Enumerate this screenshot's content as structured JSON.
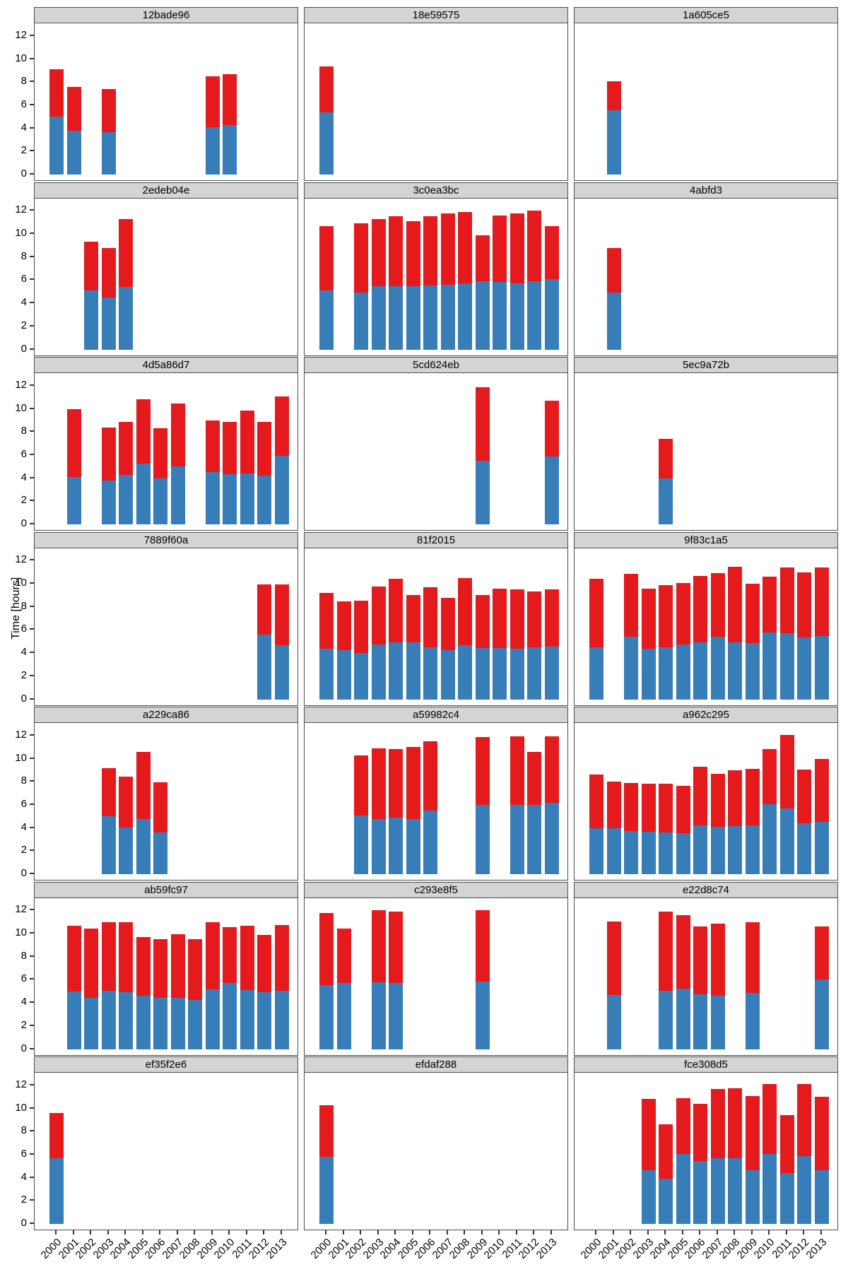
{
  "figure": {
    "y_axis_title": "Time [hours]"
  },
  "colors": {
    "blue": "#377EB8",
    "red": "#E41A1C",
    "strip_bg": "#D4D4D4",
    "panel_border": "#4D4D4D",
    "background": "#FFFFFF"
  },
  "chart_data": {
    "type": "bar",
    "stacked": true,
    "faceted": true,
    "title": "",
    "xlabel": "",
    "ylabel": "Time [hours]",
    "ylim": [
      0,
      12.6
    ],
    "grid": false,
    "legend_position": "none",
    "y_ticks": [
      0,
      2,
      4,
      6,
      8,
      10,
      12
    ],
    "x_years": [
      2000,
      2001,
      2002,
      2003,
      2004,
      2005,
      2006,
      2007,
      2008,
      2009,
      2010,
      2011,
      2012,
      2013
    ],
    "series_meaning": {
      "blue": "bottom segment value",
      "total": "stacked bar total; red segment = total - blue"
    },
    "facets": [
      {
        "id": "12bade96",
        "bars": [
          {
            "year": 2000,
            "blue": 5.0,
            "total": 9.1
          },
          {
            "year": 2001,
            "blue": 3.8,
            "total": 7.6
          },
          {
            "year": 2003,
            "blue": 3.7,
            "total": 7.4
          },
          {
            "year": 2009,
            "blue": 4.1,
            "total": 8.5
          },
          {
            "year": 2010,
            "blue": 4.3,
            "total": 8.7
          }
        ]
      },
      {
        "id": "18e59575",
        "bars": [
          {
            "year": 2000,
            "blue": 5.4,
            "total": 9.35
          }
        ]
      },
      {
        "id": "1a605ce5",
        "bars": [
          {
            "year": 2001,
            "blue": 5.55,
            "total": 8.05
          }
        ]
      },
      {
        "id": "2edeb04e",
        "bars": [
          {
            "year": 2002,
            "blue": 5.1,
            "total": 9.3
          },
          {
            "year": 2003,
            "blue": 4.5,
            "total": 8.75
          },
          {
            "year": 2004,
            "blue": 5.4,
            "total": 11.3
          }
        ]
      },
      {
        "id": "3c0ea3bc",
        "bars": [
          {
            "year": 2000,
            "blue": 5.1,
            "total": 10.65
          },
          {
            "year": 2002,
            "blue": 4.9,
            "total": 10.9
          },
          {
            "year": 2003,
            "blue": 5.45,
            "total": 11.3
          },
          {
            "year": 2004,
            "blue": 5.5,
            "total": 11.5
          },
          {
            "year": 2005,
            "blue": 5.5,
            "total": 11.1
          },
          {
            "year": 2006,
            "blue": 5.55,
            "total": 11.5
          },
          {
            "year": 2007,
            "blue": 5.6,
            "total": 11.75
          },
          {
            "year": 2008,
            "blue": 5.75,
            "total": 11.9
          },
          {
            "year": 2009,
            "blue": 5.9,
            "total": 9.9
          },
          {
            "year": 2010,
            "blue": 5.85,
            "total": 11.6
          },
          {
            "year": 2011,
            "blue": 5.75,
            "total": 11.8
          },
          {
            "year": 2012,
            "blue": 5.9,
            "total": 12.0
          },
          {
            "year": 2013,
            "blue": 6.1,
            "total": 10.7
          }
        ]
      },
      {
        "id": "4abfd3",
        "bars": [
          {
            "year": 2001,
            "blue": 4.9,
            "total": 8.8
          }
        ]
      },
      {
        "id": "4d5a86d7",
        "bars": [
          {
            "year": 2001,
            "blue": 4.1,
            "total": 10.0
          },
          {
            "year": 2003,
            "blue": 3.8,
            "total": 8.4
          },
          {
            "year": 2004,
            "blue": 4.3,
            "total": 8.85
          },
          {
            "year": 2005,
            "blue": 5.25,
            "total": 10.8
          },
          {
            "year": 2006,
            "blue": 3.95,
            "total": 8.3
          },
          {
            "year": 2007,
            "blue": 5.0,
            "total": 10.45
          },
          {
            "year": 2009,
            "blue": 4.5,
            "total": 9.0
          },
          {
            "year": 2010,
            "blue": 4.35,
            "total": 8.9
          },
          {
            "year": 2011,
            "blue": 4.4,
            "total": 9.85
          },
          {
            "year": 2012,
            "blue": 4.25,
            "total": 8.85
          },
          {
            "year": 2013,
            "blue": 5.95,
            "total": 11.05
          }
        ]
      },
      {
        "id": "5cd624eb",
        "bars": [
          {
            "year": 2009,
            "blue": 5.5,
            "total": 11.85
          },
          {
            "year": 2013,
            "blue": 5.9,
            "total": 10.7
          }
        ]
      },
      {
        "id": "5ec9a72b",
        "bars": [
          {
            "year": 2004,
            "blue": 4.0,
            "total": 7.4
          }
        ]
      },
      {
        "id": "7889f60a",
        "bars": [
          {
            "year": 2012,
            "blue": 5.6,
            "total": 9.95
          },
          {
            "year": 2013,
            "blue": 4.7,
            "total": 9.95
          }
        ]
      },
      {
        "id": "81f2015",
        "bars": [
          {
            "year": 2000,
            "blue": 4.35,
            "total": 9.2
          },
          {
            "year": 2001,
            "blue": 4.25,
            "total": 8.5
          },
          {
            "year": 2002,
            "blue": 4.0,
            "total": 8.55
          },
          {
            "year": 2003,
            "blue": 4.75,
            "total": 9.75
          },
          {
            "year": 2004,
            "blue": 4.95,
            "total": 10.4
          },
          {
            "year": 2005,
            "blue": 4.95,
            "total": 9.0
          },
          {
            "year": 2006,
            "blue": 4.5,
            "total": 9.7
          },
          {
            "year": 2007,
            "blue": 4.25,
            "total": 8.8
          },
          {
            "year": 2008,
            "blue": 4.65,
            "total": 10.5
          },
          {
            "year": 2009,
            "blue": 4.45,
            "total": 9.05
          },
          {
            "year": 2010,
            "blue": 4.45,
            "total": 9.6
          },
          {
            "year": 2011,
            "blue": 4.4,
            "total": 9.5
          },
          {
            "year": 2012,
            "blue": 4.5,
            "total": 9.3
          },
          {
            "year": 2013,
            "blue": 4.55,
            "total": 9.5
          }
        ]
      },
      {
        "id": "9f83c1a5",
        "bars": [
          {
            "year": 2000,
            "blue": 4.5,
            "total": 10.4
          },
          {
            "year": 2002,
            "blue": 5.4,
            "total": 10.85
          },
          {
            "year": 2003,
            "blue": 4.4,
            "total": 9.6
          },
          {
            "year": 2004,
            "blue": 4.5,
            "total": 9.85
          },
          {
            "year": 2005,
            "blue": 4.75,
            "total": 10.05
          },
          {
            "year": 2006,
            "blue": 4.9,
            "total": 10.7
          },
          {
            "year": 2007,
            "blue": 5.4,
            "total": 10.9
          },
          {
            "year": 2008,
            "blue": 4.9,
            "total": 11.45
          },
          {
            "year": 2009,
            "blue": 4.85,
            "total": 10.0
          },
          {
            "year": 2010,
            "blue": 5.8,
            "total": 10.6
          },
          {
            "year": 2011,
            "blue": 5.75,
            "total": 11.4
          },
          {
            "year": 2012,
            "blue": 5.35,
            "total": 10.95
          },
          {
            "year": 2013,
            "blue": 5.5,
            "total": 11.4
          }
        ]
      },
      {
        "id": "a229ca86",
        "bars": [
          {
            "year": 2003,
            "blue": 5.0,
            "total": 9.2
          },
          {
            "year": 2004,
            "blue": 4.05,
            "total": 8.45
          },
          {
            "year": 2005,
            "blue": 4.8,
            "total": 10.6
          },
          {
            "year": 2006,
            "blue": 3.6,
            "total": 7.95
          }
        ]
      },
      {
        "id": "a59982c4",
        "bars": [
          {
            "year": 2002,
            "blue": 5.1,
            "total": 10.3
          },
          {
            "year": 2003,
            "blue": 4.8,
            "total": 10.9
          },
          {
            "year": 2004,
            "blue": 4.9,
            "total": 10.8
          },
          {
            "year": 2005,
            "blue": 4.8,
            "total": 11.0
          },
          {
            "year": 2006,
            "blue": 5.5,
            "total": 11.5
          },
          {
            "year": 2009,
            "blue": 6.0,
            "total": 11.85
          },
          {
            "year": 2011,
            "blue": 6.0,
            "total": 11.9
          },
          {
            "year": 2012,
            "blue": 6.0,
            "total": 10.6
          },
          {
            "year": 2013,
            "blue": 6.2,
            "total": 11.9
          }
        ]
      },
      {
        "id": "a962c295",
        "bars": [
          {
            "year": 2000,
            "blue": 4.0,
            "total": 8.6
          },
          {
            "year": 2001,
            "blue": 3.95,
            "total": 8.0
          },
          {
            "year": 2002,
            "blue": 3.75,
            "total": 7.9
          },
          {
            "year": 2003,
            "blue": 3.65,
            "total": 7.8
          },
          {
            "year": 2004,
            "blue": 3.6,
            "total": 7.8
          },
          {
            "year": 2005,
            "blue": 3.55,
            "total": 7.65
          },
          {
            "year": 2006,
            "blue": 4.25,
            "total": 9.3
          },
          {
            "year": 2007,
            "blue": 4.1,
            "total": 8.7
          },
          {
            "year": 2008,
            "blue": 4.15,
            "total": 9.0
          },
          {
            "year": 2009,
            "blue": 4.2,
            "total": 9.1
          },
          {
            "year": 2010,
            "blue": 6.05,
            "total": 10.85
          },
          {
            "year": 2011,
            "blue": 5.7,
            "total": 12.05
          },
          {
            "year": 2012,
            "blue": 4.4,
            "total": 9.05
          },
          {
            "year": 2013,
            "blue": 4.55,
            "total": 9.95
          }
        ]
      },
      {
        "id": "ab59fc97",
        "bars": [
          {
            "year": 2001,
            "blue": 5.0,
            "total": 10.7
          },
          {
            "year": 2002,
            "blue": 4.45,
            "total": 10.4
          },
          {
            "year": 2003,
            "blue": 5.05,
            "total": 11.0
          },
          {
            "year": 2004,
            "blue": 4.9,
            "total": 10.95
          },
          {
            "year": 2005,
            "blue": 4.6,
            "total": 9.7
          },
          {
            "year": 2006,
            "blue": 4.45,
            "total": 9.5
          },
          {
            "year": 2007,
            "blue": 4.45,
            "total": 9.95
          },
          {
            "year": 2008,
            "blue": 4.25,
            "total": 9.5
          },
          {
            "year": 2009,
            "blue": 5.15,
            "total": 11.0
          },
          {
            "year": 2010,
            "blue": 5.7,
            "total": 10.55
          },
          {
            "year": 2011,
            "blue": 5.1,
            "total": 10.65
          },
          {
            "year": 2012,
            "blue": 4.95,
            "total": 9.9
          },
          {
            "year": 2013,
            "blue": 5.05,
            "total": 10.75
          }
        ]
      },
      {
        "id": "c293e8f5",
        "bars": [
          {
            "year": 2000,
            "blue": 5.55,
            "total": 11.8
          },
          {
            "year": 2001,
            "blue": 5.7,
            "total": 10.4
          },
          {
            "year": 2003,
            "blue": 5.8,
            "total": 12.0
          },
          {
            "year": 2004,
            "blue": 5.75,
            "total": 11.9
          },
          {
            "year": 2009,
            "blue": 5.85,
            "total": 12.0
          }
        ]
      },
      {
        "id": "e22d8c74",
        "bars": [
          {
            "year": 2001,
            "blue": 4.65,
            "total": 11.05
          },
          {
            "year": 2004,
            "blue": 5.05,
            "total": 11.9
          },
          {
            "year": 2005,
            "blue": 5.2,
            "total": 11.6
          },
          {
            "year": 2006,
            "blue": 4.75,
            "total": 10.6
          },
          {
            "year": 2007,
            "blue": 4.6,
            "total": 10.85
          },
          {
            "year": 2009,
            "blue": 4.85,
            "total": 11.0
          },
          {
            "year": 2013,
            "blue": 6.05,
            "total": 10.6
          }
        ]
      },
      {
        "id": "ef35f2e6",
        "bars": [
          {
            "year": 2000,
            "blue": 5.7,
            "total": 9.6
          }
        ]
      },
      {
        "id": "efdaf288",
        "bars": [
          {
            "year": 2000,
            "blue": 5.8,
            "total": 10.25
          }
        ]
      },
      {
        "id": "fce308d5",
        "bars": [
          {
            "year": 2003,
            "blue": 4.65,
            "total": 10.8
          },
          {
            "year": 2004,
            "blue": 3.9,
            "total": 8.6
          },
          {
            "year": 2005,
            "blue": 6.05,
            "total": 10.9
          },
          {
            "year": 2006,
            "blue": 5.45,
            "total": 10.4
          },
          {
            "year": 2007,
            "blue": 5.7,
            "total": 11.7
          },
          {
            "year": 2008,
            "blue": 5.7,
            "total": 11.75
          },
          {
            "year": 2009,
            "blue": 4.65,
            "total": 11.1
          },
          {
            "year": 2010,
            "blue": 6.05,
            "total": 12.1
          },
          {
            "year": 2011,
            "blue": 4.4,
            "total": 9.45
          },
          {
            "year": 2012,
            "blue": 5.85,
            "total": 12.1
          },
          {
            "year": 2013,
            "blue": 4.65,
            "total": 11.0
          }
        ]
      }
    ]
  }
}
